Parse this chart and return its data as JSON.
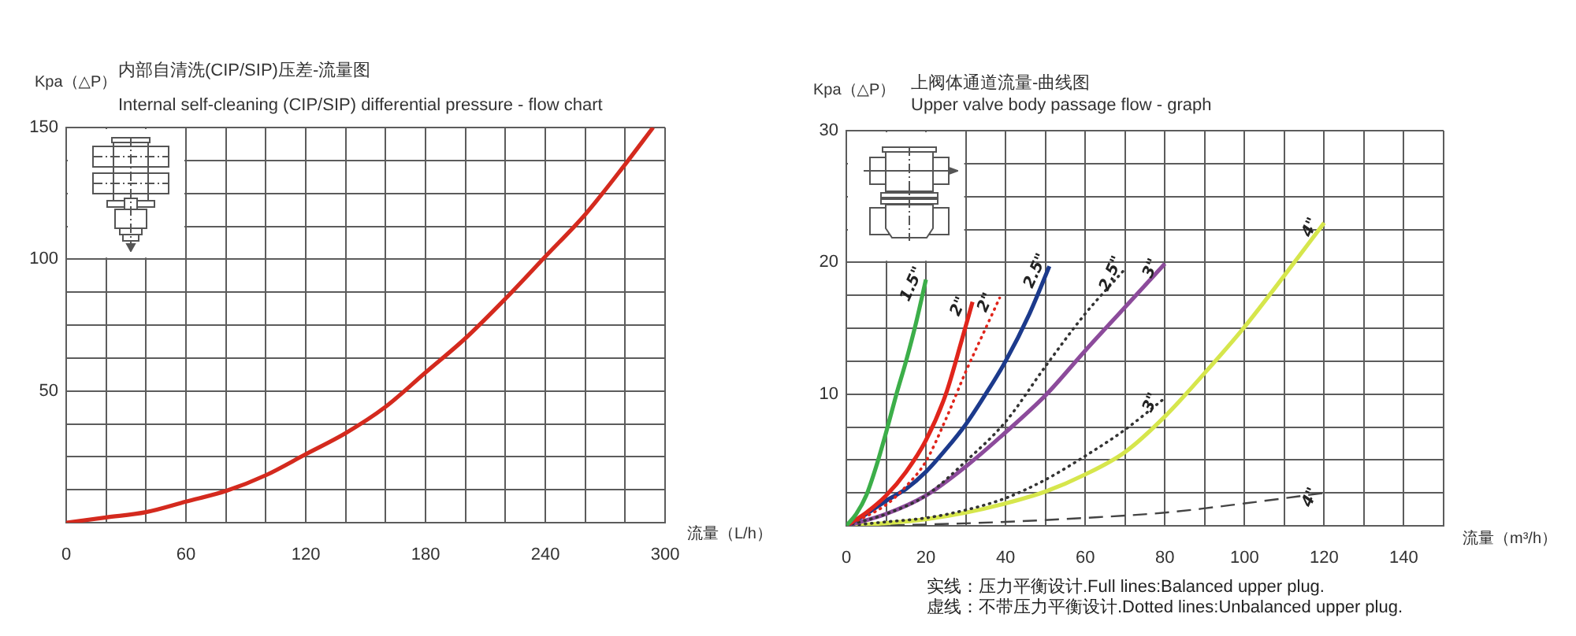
{
  "chart_data": [
    {
      "type": "line",
      "title": "内部自清洗(CIP/SIP)压差-流量图",
      "subtitle": "Internal self-cleaning (CIP/SIP) differential pressure - flow chart",
      "xlabel": "流量（L/h）",
      "ylabel": "Kpa（△P）",
      "x": [
        0,
        20,
        40,
        60,
        80,
        100,
        120,
        140,
        160,
        180,
        200,
        220,
        240,
        260,
        280,
        294
      ],
      "series": [
        {
          "color": "#d42a1e",
          "values": [
            0,
            2,
            4,
            8,
            12,
            18,
            26,
            34,
            44,
            57,
            70,
            85,
            101,
            117,
            136,
            150
          ]
        }
      ],
      "xlim": [
        0,
        300
      ],
      "ylim": [
        0,
        150
      ],
      "xticks": [
        0,
        {
          "value": 20,
          "label": null
        },
        {
          "value": 40,
          "label": null
        },
        60,
        {
          "value": 80,
          "label": null
        },
        {
          "value": 100,
          "label": null
        },
        120,
        {
          "value": 140,
          "label": null
        },
        {
          "value": 160,
          "label": null
        },
        180,
        {
          "value": 200,
          "label": null
        },
        {
          "value": 220,
          "label": null
        },
        240,
        {
          "value": 260,
          "label": null
        },
        {
          "value": 280,
          "label": null
        },
        300
      ],
      "yticks": [
        {
          "value": 0,
          "label": null
        },
        {
          "value": 12.5,
          "label": null
        },
        {
          "value": 25,
          "label": null
        },
        {
          "value": 37.5,
          "label": null
        },
        50,
        {
          "value": 62.5,
          "label": null
        },
        {
          "value": 75,
          "label": null
        },
        {
          "value": 87.5,
          "label": null
        },
        100,
        {
          "value": 112.5,
          "label": null
        },
        {
          "value": 125,
          "label": null
        },
        {
          "value": 137.5,
          "label": null
        },
        150
      ],
      "grid": true
    },
    {
      "type": "line",
      "title": "上阀体通道流量-曲线图",
      "subtitle": "Upper valve body passage flow - graph",
      "xlabel": "流量（m³/h）",
      "ylabel": "Kpa（△P）",
      "series": [
        {
          "name": "1.5\"",
          "color": "#3cae49",
          "x": [
            0,
            2.5,
            5,
            7.5,
            10,
            12.5,
            15,
            17.5,
            20
          ],
          "values": [
            0,
            0.9,
            2.3,
            4.5,
            7.1,
            9.9,
            12.5,
            15.4,
            18.7
          ]
        },
        {
          "name": "2\"",
          "color": "#e0251b",
          "x": [
            0,
            5,
            10,
            15,
            20,
            25,
            29,
            31.7
          ],
          "values": [
            0,
            1,
            2.3,
            4.1,
            6.5,
            10,
            14.1,
            17
          ]
        },
        {
          "name": "2\"",
          "color": "#e0251b",
          "line_style": "dotted",
          "x": [
            0,
            10,
            15,
            20,
            25,
            30,
            35,
            38.5
          ],
          "values": [
            0,
            1.6,
            3,
            4.9,
            8.1,
            11.7,
            15,
            17.3
          ]
        },
        {
          "name": "2.5\"",
          "color": "#1c3a8c",
          "x": [
            0,
            5,
            10,
            15,
            20,
            25,
            30,
            35,
            40,
            46,
            51
          ],
          "values": [
            0,
            0.9,
            1.9,
            2.8,
            4.1,
            5.8,
            7.7,
            10,
            12.5,
            16.1,
            19.7
          ]
        },
        {
          "name": "2.5\"",
          "color": "#333333",
          "line_style": "dotted",
          "x": [
            0,
            10,
            20,
            30,
            40,
            50,
            60,
            70
          ],
          "values": [
            0,
            0.9,
            2.3,
            4.9,
            7.9,
            12.1,
            16.1,
            19.5
          ]
        },
        {
          "name": "3\"",
          "color": "#8c4b9b",
          "x": [
            0,
            10,
            20,
            30,
            40,
            50,
            60,
            70,
            80
          ],
          "values": [
            0,
            0.9,
            2.3,
            4.5,
            7.1,
            9.9,
            13.3,
            16.6,
            19.9
          ]
        },
        {
          "name": "3\"",
          "color": "#333333",
          "line_style": "dotted",
          "x": [
            0,
            10,
            20,
            30,
            40,
            50,
            60,
            70,
            80
          ],
          "values": [
            0,
            0.3,
            0.6,
            1.2,
            2.1,
            3.5,
            5.3,
            7.3,
            9.7
          ]
        },
        {
          "name": "4\"",
          "color": "#d6e64c",
          "x": [
            0,
            10,
            20,
            30,
            40,
            50,
            60,
            70,
            80,
            90,
            100,
            110,
            120
          ],
          "values": [
            0,
            0.2,
            0.5,
            1,
            1.7,
            2.6,
            3.9,
            5.6,
            8.3,
            11.6,
            15.1,
            19,
            23
          ]
        },
        {
          "name": "4\"",
          "color": "#444444",
          "line_style": "dashed",
          "x": [
            0,
            20,
            40,
            60,
            80,
            100,
            120
          ],
          "values": [
            0,
            0.1,
            0.3,
            0.6,
            1,
            1.7,
            2.5
          ]
        }
      ],
      "xlim": [
        0,
        150
      ],
      "ylim": [
        0,
        30
      ],
      "xticks": [
        0,
        {
          "value": 10,
          "label": null
        },
        20,
        {
          "value": 30,
          "label": null
        },
        40,
        {
          "value": 50,
          "label": null
        },
        60,
        {
          "value": 70,
          "label": null
        },
        80,
        {
          "value": 90,
          "label": null
        },
        100,
        {
          "value": 110,
          "label": null
        },
        120,
        {
          "value": 130,
          "label": null
        },
        140,
        {
          "value": 150,
          "label": null
        }
      ],
      "yticks": [
        {
          "value": 0,
          "label": null
        },
        {
          "value": 2.5,
          "label": null
        },
        {
          "value": 5,
          "label": null
        },
        {
          "value": 7.5,
          "label": null
        },
        10,
        {
          "value": 12.5,
          "label": null
        },
        {
          "value": 15,
          "label": null
        },
        {
          "value": 17.5,
          "label": null
        },
        20,
        {
          "value": 22.5,
          "label": null
        },
        {
          "value": 25,
          "label": null
        },
        {
          "value": 27.5,
          "label": null
        },
        30
      ],
      "grid": true,
      "annotations": [
        "实线：压力平衡设计.Full lines:Balanced upper plug.",
        "虚线：不带压力平衡设计.Dotted lines:Unbalanced upper plug."
      ]
    }
  ]
}
